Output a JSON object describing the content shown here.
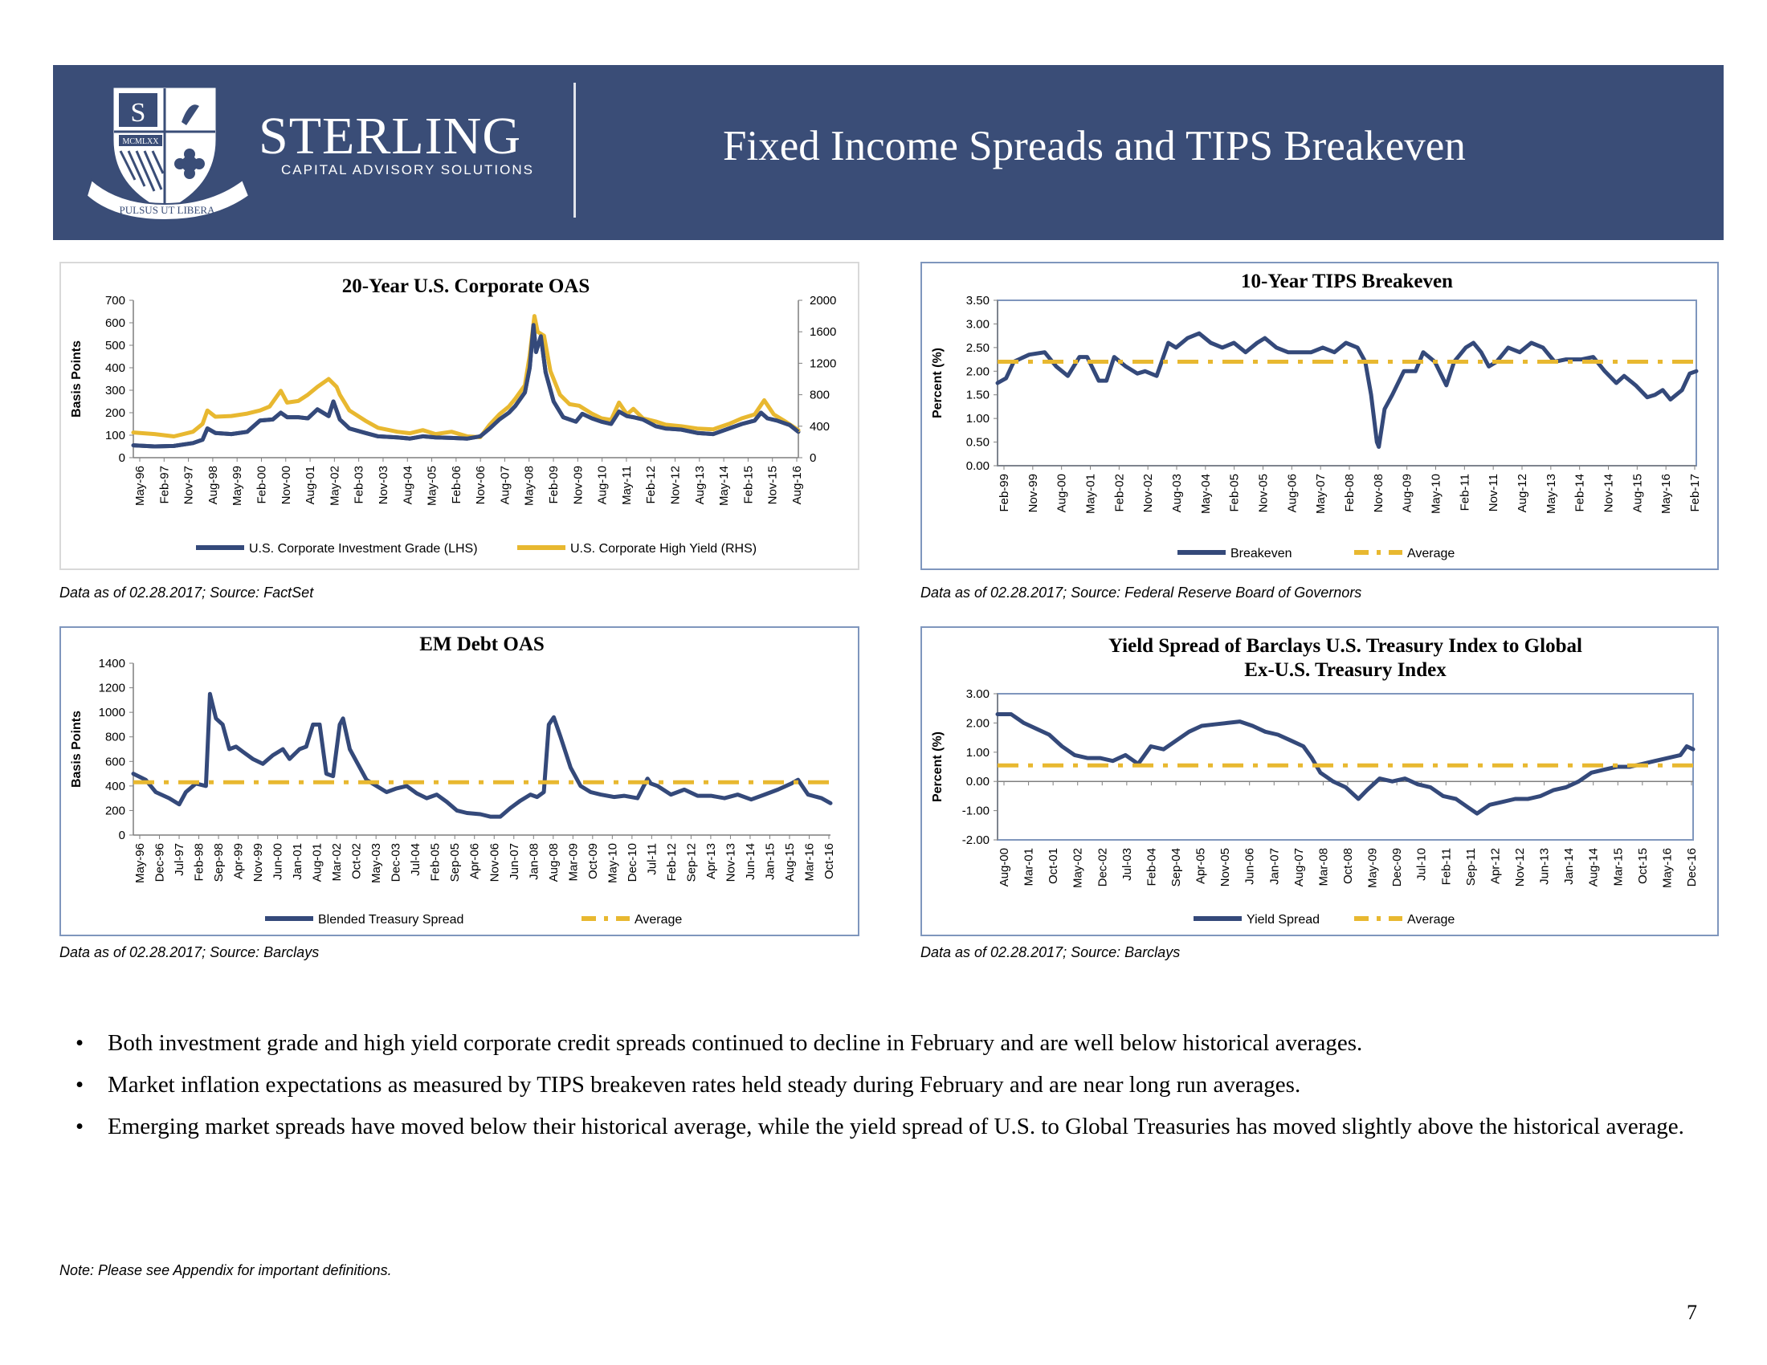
{
  "header": {
    "brand": "STERLING",
    "brand_sub": "CAPITAL ADVISORY SOLUTIONS",
    "motto": "PULSUS UT LIBERA",
    "shield_text": "MCMLXX",
    "shield_letter": "S",
    "title": "Fixed Income Spreads and TIPS Breakeven",
    "colors": {
      "banner": "#3a4d77",
      "navy": "#34497a",
      "gold": "#e8b830"
    }
  },
  "sources": [
    "Data as of 02.28.2017;  Source: FactSet",
    "Data as of 02.28.2017; Source: Federal Reserve Board of Governors",
    "Data as of 02.28.2017;  Source: Barclays",
    "Data as of 02.28.2017;  Source: Barclays"
  ],
  "bullets": [
    "Both investment grade and high yield corporate credit spreads continued to decline in February and are well below historical averages.",
    "Market inflation expectations as measured by TIPS breakeven rates held steady during February and are near long run averages.",
    "Emerging market spreads have moved below their historical average, while the yield spread of U.S. to Global Treasuries has moved slightly above the historical average."
  ],
  "note": "Note: Please see  Appendix for important definitions.",
  "page_number": "7",
  "chart_data": [
    {
      "type": "line",
      "title": "20-Year U.S. Corporate OAS",
      "ylabel": "Basis Points",
      "ylim": [
        0,
        700
      ],
      "yticks": [
        0,
        100,
        200,
        300,
        400,
        500,
        600,
        700
      ],
      "y2lim": [
        0,
        2000
      ],
      "y2ticks": [
        0,
        400,
        800,
        1200,
        1600,
        2000
      ],
      "x_range": [
        1996.33,
        2017.17
      ],
      "xtick_labels": [
        "May-96",
        "Feb-97",
        "Nov-97",
        "Aug-98",
        "May-99",
        "Feb-00",
        "Nov-00",
        "Aug-01",
        "May-02",
        "Feb-03",
        "Nov-03",
        "Aug-04",
        "May-05",
        "Feb-06",
        "Nov-06",
        "Aug-07",
        "May-08",
        "Feb-09",
        "Nov-09",
        "Aug-10",
        "May-11",
        "Feb-12",
        "Nov-12",
        "Aug-13",
        "May-14",
        "Feb-15",
        "Nov-15",
        "Aug-16"
      ],
      "legend": "bottom",
      "series": [
        {
          "name": "U.S. Corporate Investment Grade (LHS)",
          "axis": "left",
          "color": "#34497a",
          "x": [
            1996.33,
            1997.0,
            1997.6,
            1998.2,
            1998.5,
            1998.65,
            1998.9,
            1999.4,
            1999.9,
            2000.3,
            2000.7,
            2000.95,
            2001.15,
            2001.5,
            2001.8,
            2002.1,
            2002.45,
            2002.6,
            2002.8,
            2003.1,
            2003.6,
            2004.0,
            2004.6,
            2005.0,
            2005.4,
            2005.8,
            2006.3,
            2006.8,
            2007.2,
            2007.5,
            2007.8,
            2008.1,
            2008.3,
            2008.6,
            2008.75,
            2008.87,
            2008.95,
            2009.1,
            2009.25,
            2009.5,
            2009.8,
            2010.2,
            2010.4,
            2010.7,
            2011.0,
            2011.3,
            2011.55,
            2011.8,
            2012.0,
            2012.3,
            2012.7,
            2013.0,
            2013.5,
            2014.0,
            2014.5,
            2015.0,
            2015.4,
            2015.8,
            2016.0,
            2016.2,
            2016.5,
            2016.9,
            2017.17
          ],
          "y": [
            55,
            50,
            52,
            65,
            80,
            130,
            110,
            105,
            115,
            165,
            170,
            200,
            180,
            180,
            175,
            215,
            185,
            250,
            170,
            130,
            110,
            95,
            90,
            85,
            95,
            90,
            88,
            85,
            95,
            130,
            170,
            200,
            230,
            290,
            400,
            590,
            470,
            540,
            380,
            250,
            180,
            160,
            195,
            175,
            160,
            150,
            205,
            185,
            180,
            170,
            140,
            130,
            125,
            110,
            105,
            130,
            150,
            165,
            200,
            175,
            165,
            145,
            115
          ]
        },
        {
          "name": "U.S. Corporate High Yield (RHS)",
          "axis": "right",
          "color": "#e8b830",
          "x": [
            1996.33,
            1997.0,
            1997.6,
            1998.2,
            1998.5,
            1998.65,
            1998.9,
            1999.4,
            1999.9,
            2000.3,
            2000.6,
            2000.95,
            2001.15,
            2001.5,
            2001.8,
            2002.1,
            2002.45,
            2002.7,
            2002.8,
            2003.1,
            2003.6,
            2004.0,
            2004.6,
            2005.0,
            2005.4,
            2005.8,
            2006.3,
            2006.8,
            2007.2,
            2007.5,
            2007.8,
            2008.1,
            2008.3,
            2008.6,
            2008.75,
            2008.9,
            2009.0,
            2009.2,
            2009.4,
            2009.7,
            2010.0,
            2010.3,
            2010.7,
            2011.0,
            2011.3,
            2011.55,
            2011.8,
            2012.0,
            2012.3,
            2012.7,
            2013.0,
            2013.5,
            2014.0,
            2014.5,
            2015.0,
            2015.4,
            2015.8,
            2016.1,
            2016.4,
            2016.8,
            2017.17
          ],
          "y": [
            320,
            300,
            270,
            330,
            430,
            600,
            520,
            530,
            560,
            600,
            650,
            850,
            700,
            720,
            800,
            900,
            1000,
            900,
            800,
            600,
            470,
            380,
            330,
            310,
            350,
            300,
            330,
            270,
            260,
            420,
            550,
            650,
            750,
            920,
            1300,
            1800,
            1600,
            1550,
            1100,
            800,
            680,
            660,
            560,
            500,
            480,
            700,
            550,
            620,
            500,
            460,
            420,
            400,
            370,
            360,
            430,
            500,
            550,
            730,
            550,
            450,
            350
          ]
        }
      ]
    },
    {
      "type": "line",
      "title": "10-Year TIPS Breakeven",
      "ylabel": "Percent (%)",
      "ylim": [
        0,
        3.5
      ],
      "yticks": [
        "0.00",
        "0.50",
        "1.00",
        "1.50",
        "2.00",
        "2.50",
        "3.00",
        "3.50"
      ],
      "x_range": [
        1999.08,
        2017.17
      ],
      "xtick_labels": [
        "Feb-99",
        "Nov-99",
        "Aug-00",
        "May-01",
        "Feb-02",
        "Nov-02",
        "Aug-03",
        "May-04",
        "Feb-05",
        "Nov-05",
        "Aug-06",
        "May-07",
        "Feb-08",
        "Nov-08",
        "Aug-09",
        "May-10",
        "Feb-11",
        "Nov-11",
        "Aug-12",
        "May-13",
        "Feb-14",
        "Nov-14",
        "Aug-15",
        "May-16",
        "Feb-17"
      ],
      "legend": "bottom",
      "series": [
        {
          "name": "Breakeven",
          "color": "#34497a",
          "x": [
            1999.08,
            1999.3,
            1999.5,
            1999.9,
            2000.3,
            2000.6,
            2000.9,
            2001.2,
            2001.4,
            2001.7,
            2001.9,
            2002.1,
            2002.4,
            2002.7,
            2002.9,
            2003.2,
            2003.5,
            2003.7,
            2004.0,
            2004.3,
            2004.6,
            2004.9,
            2005.2,
            2005.5,
            2005.8,
            2006.0,
            2006.3,
            2006.6,
            2006.9,
            2007.2,
            2007.5,
            2007.8,
            2008.1,
            2008.4,
            2008.6,
            2008.75,
            2008.9,
            2008.95,
            2009.1,
            2009.3,
            2009.6,
            2009.9,
            2010.1,
            2010.4,
            2010.7,
            2010.9,
            2011.2,
            2011.4,
            2011.6,
            2011.8,
            2012.0,
            2012.3,
            2012.6,
            2012.9,
            2013.2,
            2013.5,
            2013.8,
            2014.2,
            2014.5,
            2014.8,
            2015.1,
            2015.3,
            2015.6,
            2015.9,
            2016.1,
            2016.3,
            2016.5,
            2016.8,
            2017.0,
            2017.17
          ],
          "y": [
            1.75,
            1.85,
            2.2,
            2.35,
            2.4,
            2.1,
            1.9,
            2.3,
            2.3,
            1.8,
            1.8,
            2.3,
            2.1,
            1.95,
            2.0,
            1.9,
            2.6,
            2.5,
            2.7,
            2.8,
            2.6,
            2.5,
            2.6,
            2.4,
            2.6,
            2.7,
            2.5,
            2.4,
            2.4,
            2.4,
            2.5,
            2.4,
            2.6,
            2.5,
            2.2,
            1.5,
            0.5,
            0.4,
            1.2,
            1.5,
            2.0,
            2.0,
            2.4,
            2.2,
            1.7,
            2.2,
            2.5,
            2.6,
            2.4,
            2.1,
            2.2,
            2.5,
            2.4,
            2.6,
            2.5,
            2.2,
            2.25,
            2.25,
            2.3,
            2.0,
            1.75,
            1.9,
            1.7,
            1.45,
            1.5,
            1.6,
            1.4,
            1.6,
            1.95,
            2.0
          ]
        },
        {
          "name": "Average",
          "color": "#e8b830",
          "dashed": true,
          "x": [
            1999.08,
            2017.17
          ],
          "y": [
            2.2,
            2.2
          ]
        }
      ]
    },
    {
      "type": "line",
      "title": "EM Debt OAS",
      "ylabel": "Basis Points",
      "ylim": [
        0,
        1400
      ],
      "yticks": [
        0,
        200,
        400,
        600,
        800,
        1000,
        1200,
        1400
      ],
      "x_range": [
        1996.33,
        2017.17
      ],
      "xtick_labels": [
        "May-96",
        "Dec-96",
        "Jul-97",
        "Feb-98",
        "Sep-98",
        "Apr-99",
        "Nov-99",
        "Jun-00",
        "Jan-01",
        "Aug-01",
        "Mar-02",
        "Oct-02",
        "May-03",
        "Dec-03",
        "Jul-04",
        "Feb-05",
        "Sep-05",
        "Apr-06",
        "Nov-06",
        "Jun-07",
        "Jan-08",
        "Aug-08",
        "Mar-09",
        "Oct-09",
        "May-10",
        "Dec-10",
        "Jul-11",
        "Feb-12",
        "Sep-12",
        "Apr-13",
        "Nov-13",
        "Jun-14",
        "Jan-15",
        "Aug-15",
        "Mar-16",
        "Oct-16"
      ],
      "legend": "bottom",
      "series": [
        {
          "name": "Blended Treasury Spread",
          "color": "#34497a",
          "x": [
            1996.33,
            1996.7,
            1997.0,
            1997.4,
            1997.7,
            1997.9,
            1998.2,
            1998.5,
            1998.62,
            1998.8,
            1999.0,
            1999.2,
            1999.4,
            1999.6,
            1999.9,
            2000.2,
            2000.5,
            2000.8,
            2001.0,
            2001.3,
            2001.5,
            2001.7,
            2001.9,
            2002.1,
            2002.3,
            2002.5,
            2002.6,
            2002.8,
            2003.0,
            2003.3,
            2003.6,
            2003.9,
            2004.2,
            2004.5,
            2004.8,
            2005.1,
            2005.4,
            2005.7,
            2006.0,
            2006.3,
            2006.7,
            2007.0,
            2007.3,
            2007.6,
            2007.9,
            2008.2,
            2008.4,
            2008.6,
            2008.75,
            2008.9,
            2009.1,
            2009.4,
            2009.7,
            2010.0,
            2010.3,
            2010.7,
            2011.0,
            2011.4,
            2011.7,
            2011.8,
            2012.0,
            2012.4,
            2012.8,
            2013.2,
            2013.6,
            2014.0,
            2014.4,
            2014.8,
            2015.2,
            2015.6,
            2016.0,
            2016.2,
            2016.5,
            2016.9,
            2017.17
          ],
          "y": [
            500,
            450,
            350,
            300,
            250,
            350,
            420,
            400,
            1150,
            950,
            900,
            700,
            720,
            680,
            620,
            580,
            650,
            700,
            620,
            700,
            720,
            900,
            900,
            500,
            480,
            900,
            950,
            700,
            600,
            450,
            400,
            350,
            380,
            400,
            340,
            300,
            330,
            270,
            200,
            180,
            170,
            150,
            150,
            220,
            280,
            330,
            310,
            350,
            900,
            960,
            800,
            550,
            400,
            350,
            330,
            310,
            320,
            300,
            460,
            420,
            400,
            330,
            370,
            320,
            320,
            300,
            330,
            290,
            330,
            370,
            420,
            450,
            330,
            300,
            260
          ]
        },
        {
          "name": "Average",
          "color": "#e8b830",
          "dashed": true,
          "x": [
            1996.33,
            2017.17
          ],
          "y": [
            430,
            430
          ]
        }
      ]
    },
    {
      "type": "line",
      "title": "Yield Spread of Barclays U.S. Treasury Index to Global Ex-U.S. Treasury Index",
      "ylabel": "Percent (%)",
      "ylim": [
        -2,
        3
      ],
      "yticks": [
        "-2.00",
        "-1.00",
        "0.00",
        "1.00",
        "2.00",
        "3.00"
      ],
      "x_range": [
        2000.58,
        2017.0
      ],
      "xtick_labels": [
        "Aug-00",
        "Mar-01",
        "Oct-01",
        "May-02",
        "Dec-02",
        "Jul-03",
        "Feb-04",
        "Sep-04",
        "Apr-05",
        "Nov-05",
        "Jun-06",
        "Jan-07",
        "Aug-07",
        "Mar-08",
        "Oct-08",
        "May-09",
        "Dec-09",
        "Jul-10",
        "Feb-11",
        "Sep-11",
        "Apr-12",
        "Nov-12",
        "Jun-13",
        "Jan-14",
        "Aug-14",
        "Mar-15",
        "Oct-15",
        "May-16",
        "Dec-16"
      ],
      "legend": "bottom",
      "series": [
        {
          "name": "Yield Spread",
          "color": "#34497a",
          "x": [
            2000.58,
            2000.9,
            2001.2,
            2001.5,
            2001.8,
            2002.1,
            2002.4,
            2002.7,
            2003.0,
            2003.3,
            2003.6,
            2003.9,
            2004.2,
            2004.5,
            2004.8,
            2005.1,
            2005.4,
            2005.7,
            2006.0,
            2006.3,
            2006.6,
            2006.9,
            2007.2,
            2007.5,
            2007.8,
            2008.0,
            2008.2,
            2008.5,
            2008.8,
            2009.1,
            2009.3,
            2009.6,
            2009.9,
            2010.2,
            2010.5,
            2010.8,
            2011.1,
            2011.4,
            2011.7,
            2011.9,
            2012.2,
            2012.5,
            2012.8,
            2013.1,
            2013.4,
            2013.7,
            2014.0,
            2014.3,
            2014.6,
            2014.9,
            2015.2,
            2015.5,
            2015.8,
            2016.1,
            2016.4,
            2016.7,
            2016.85,
            2017.0
          ],
          "y": [
            2.3,
            2.3,
            2.0,
            1.8,
            1.6,
            1.2,
            0.9,
            0.8,
            0.8,
            0.7,
            0.9,
            0.6,
            1.2,
            1.1,
            1.4,
            1.7,
            1.9,
            1.95,
            2.0,
            2.05,
            1.9,
            1.7,
            1.6,
            1.4,
            1.2,
            0.8,
            0.3,
            0.0,
            -0.2,
            -0.6,
            -0.3,
            0.1,
            0.0,
            0.1,
            -0.1,
            -0.2,
            -0.5,
            -0.6,
            -0.9,
            -1.1,
            -0.8,
            -0.7,
            -0.6,
            -0.6,
            -0.5,
            -0.3,
            -0.2,
            0.0,
            0.3,
            0.4,
            0.5,
            0.5,
            0.6,
            0.7,
            0.8,
            0.9,
            1.2,
            1.1
          ]
        },
        {
          "name": "Average",
          "color": "#e8b830",
          "dashed": true,
          "x": [
            2000.58,
            2017.0
          ],
          "y": [
            0.55,
            0.55
          ]
        }
      ]
    }
  ]
}
